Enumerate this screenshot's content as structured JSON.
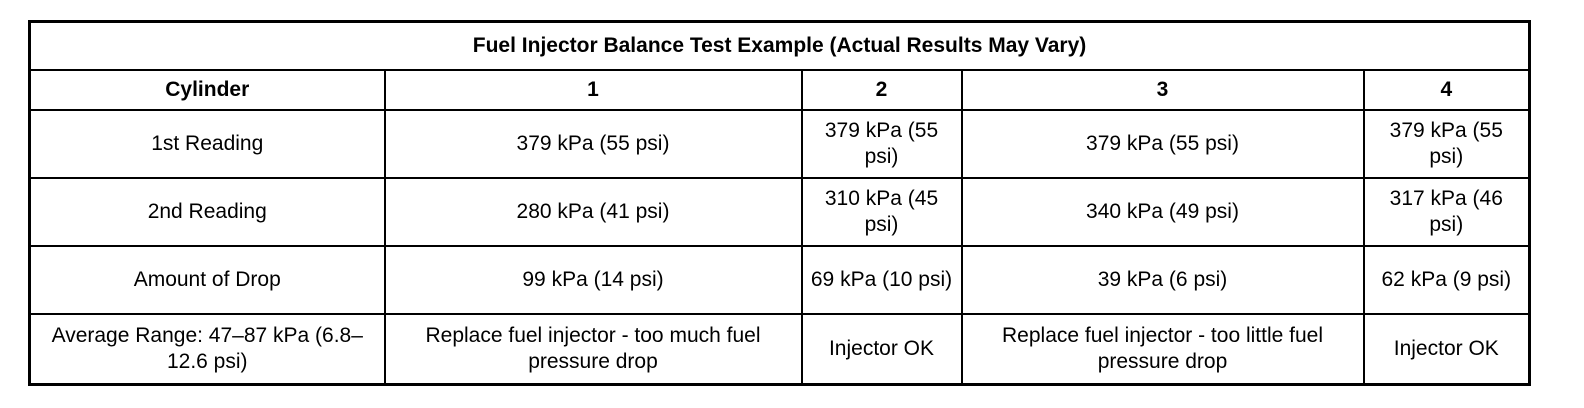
{
  "table": {
    "title": "Fuel Injector Balance Test Example (Actual Results May Vary)",
    "headers": [
      "Cylinder",
      "1",
      "2",
      "3",
      "4"
    ],
    "rows": [
      [
        "1st Reading",
        "379 kPa (55 psi)",
        "379 kPa (55 psi)",
        "379 kPa (55 psi)",
        "379 kPa (55 psi)"
      ],
      [
        "2nd Reading",
        "280 kPa (41 psi)",
        "310 kPa (45 psi)",
        "340 kPa (49 psi)",
        "317 kPa (46 psi)"
      ],
      [
        "Amount of Drop",
        "99 kPa (14 psi)",
        "69 kPa (10 psi)",
        "39 kPa (6 psi)",
        "62 kPa (9 psi)"
      ],
      [
        "Average Range: 47–87 kPa (6.8–12.6 psi)",
        "Replace fuel injector - too much fuel pressure drop",
        "Injector OK",
        "Replace fuel injector - too little fuel pressure drop",
        "Injector OK"
      ]
    ]
  }
}
